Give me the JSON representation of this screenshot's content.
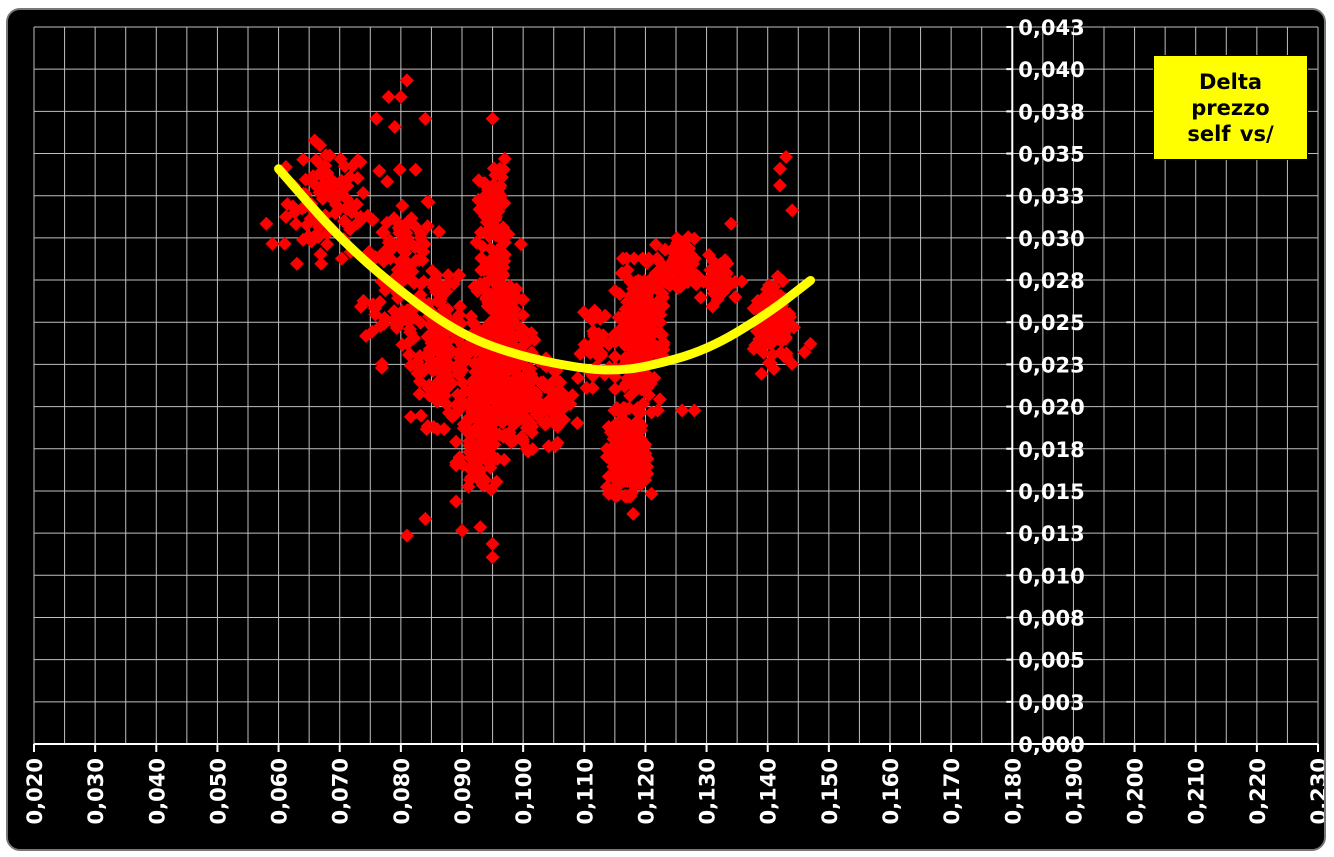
{
  "chart_data": {
    "type": "scatter",
    "title": "",
    "xlabel": "",
    "ylabel": "",
    "xlim": [
      0.02,
      0.23
    ],
    "ylim": [
      0.0,
      0.043
    ],
    "x_tick_labels": [
      "0,020",
      "0,030",
      "0,040",
      "0,050",
      "0,060",
      "0,070",
      "0,080",
      "0,090",
      "0,100",
      "0,110",
      "0,120",
      "0,130",
      "0,140",
      "0,150",
      "0,160",
      "0,170",
      "0,180",
      "0,190",
      "0,200",
      "0,210",
      "0,220",
      "0,230"
    ],
    "y_tick_labels": [
      "0,000",
      "0,003",
      "0,005",
      "0,008",
      "0,010",
      "0,013",
      "0,015",
      "0,018",
      "0,020",
      "0,023",
      "0,025",
      "0,028",
      "0,030",
      "0,033",
      "0,035",
      "0,038",
      "0,040",
      "0,043"
    ],
    "grid": true,
    "legend": {
      "text": "Delta prezzo self vs/",
      "placement": "top-right"
    },
    "colors": {
      "background": "#000000",
      "markers": "#ff0000",
      "trendline": "#ffff00",
      "legend_bg": "#ffff00",
      "grid": "#bfbfbf"
    },
    "trendline": {
      "type": "polynomial-2",
      "x": [
        0.06,
        0.07,
        0.08,
        0.09,
        0.1,
        0.11,
        0.115,
        0.12,
        0.13,
        0.14,
        0.147
      ],
      "y": [
        0.0345,
        0.0303,
        0.0271,
        0.0245,
        0.0232,
        0.0225,
        0.0224,
        0.0226,
        0.0236,
        0.0258,
        0.0278
      ]
    },
    "clusters": [
      {
        "cx": 0.068,
        "cy": 0.0325,
        "sx": 0.0055,
        "sy": 0.0028,
        "n": 90
      },
      {
        "cx": 0.08,
        "cy": 0.0285,
        "sx": 0.005,
        "sy": 0.0045,
        "n": 130
      },
      {
        "cx": 0.087,
        "cy": 0.0235,
        "sx": 0.0045,
        "sy": 0.0035,
        "n": 160
      },
      {
        "cx": 0.093,
        "cy": 0.0185,
        "sx": 0.003,
        "sy": 0.003,
        "n": 110
      },
      {
        "cx": 0.096,
        "cy": 0.0245,
        "sx": 0.003,
        "sy": 0.0045,
        "n": 260
      },
      {
        "cx": 0.098,
        "cy": 0.021,
        "sx": 0.004,
        "sy": 0.003,
        "n": 160
      },
      {
        "cx": 0.095,
        "cy": 0.032,
        "sx": 0.002,
        "sy": 0.0025,
        "n": 60
      },
      {
        "cx": 0.105,
        "cy": 0.0205,
        "sx": 0.003,
        "sy": 0.002,
        "n": 50
      },
      {
        "cx": 0.112,
        "cy": 0.024,
        "sx": 0.002,
        "sy": 0.002,
        "n": 40
      },
      {
        "cx": 0.117,
        "cy": 0.0175,
        "sx": 0.0025,
        "sy": 0.002,
        "n": 200
      },
      {
        "cx": 0.119,
        "cy": 0.0245,
        "sx": 0.003,
        "sy": 0.0035,
        "n": 260
      },
      {
        "cx": 0.125,
        "cy": 0.0285,
        "sx": 0.0025,
        "sy": 0.0015,
        "n": 60
      },
      {
        "cx": 0.132,
        "cy": 0.0278,
        "sx": 0.003,
        "sy": 0.0012,
        "n": 45
      },
      {
        "cx": 0.141,
        "cy": 0.0255,
        "sx": 0.0025,
        "sy": 0.002,
        "n": 130
      }
    ],
    "points": [
      [
        0.081,
        0.0398
      ],
      [
        0.078,
        0.0388
      ],
      [
        0.08,
        0.0388
      ],
      [
        0.076,
        0.0375
      ],
      [
        0.084,
        0.0375
      ],
      [
        0.079,
        0.037
      ],
      [
        0.095,
        0.0375
      ],
      [
        0.143,
        0.0352
      ],
      [
        0.142,
        0.0345
      ],
      [
        0.142,
        0.0335
      ],
      [
        0.144,
        0.032
      ],
      [
        0.058,
        0.0312
      ],
      [
        0.134,
        0.0312
      ],
      [
        0.081,
        0.0125
      ],
      [
        0.09,
        0.0128
      ],
      [
        0.095,
        0.0112
      ],
      [
        0.095,
        0.012
      ],
      [
        0.084,
        0.0135
      ],
      [
        0.093,
        0.013
      ],
      [
        0.118,
        0.0138
      ],
      [
        0.114,
        0.015
      ],
      [
        0.121,
        0.015
      ],
      [
        0.126,
        0.02
      ],
      [
        0.128,
        0.02
      ],
      [
        0.139,
        0.0222
      ],
      [
        0.141,
        0.0225
      ],
      [
        0.144,
        0.0228
      ],
      [
        0.146,
        0.0235
      ],
      [
        0.147,
        0.024
      ],
      [
        0.063,
        0.0288
      ],
      [
        0.059,
        0.03
      ],
      [
        0.061,
        0.03
      ]
    ]
  }
}
